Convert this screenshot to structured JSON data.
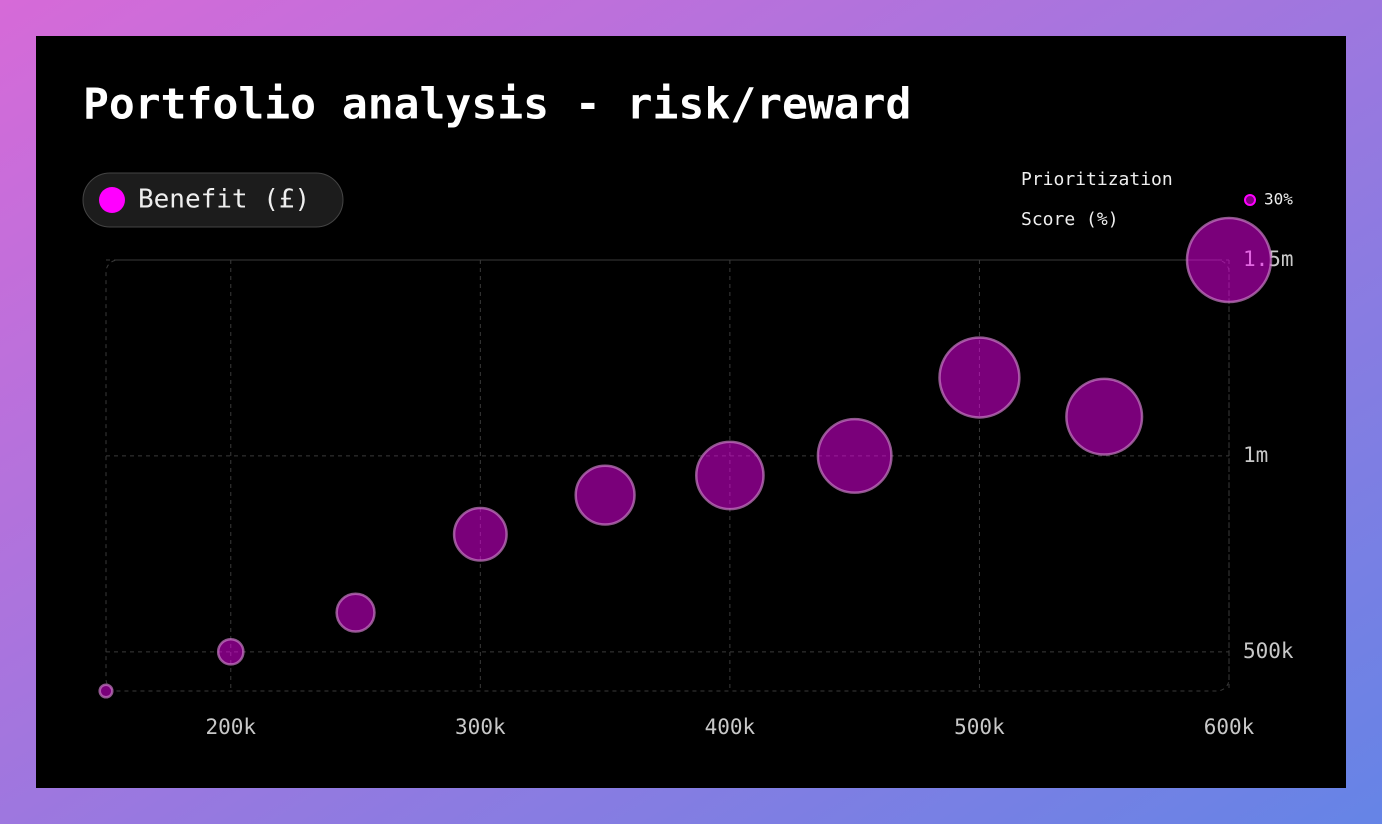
{
  "chart_data": {
    "type": "bubble",
    "title": "Portfolio analysis - risk/reward",
    "x": [
      150000,
      200000,
      250000,
      300000,
      350000,
      400000,
      450000,
      500000,
      550000,
      600000
    ],
    "series": [
      {
        "name": "Benefit (£)",
        "color": "#ff00ff",
        "values": [
          400000,
          500000,
          600000,
          800000,
          900000,
          950000,
          1000000,
          1200000,
          1100000,
          1500000
        ],
        "sizes": [
          6,
          12,
          18,
          25,
          28,
          32,
          35,
          38,
          36,
          40
        ]
      }
    ],
    "size_title": [
      "Prioritization",
      "Score (%)"
    ],
    "size_legend": {
      "value": 30,
      "label": "30%"
    },
    "xlim": [
      150000,
      600000
    ],
    "xticks": [
      {
        "value": 200000,
        "label": "200k"
      },
      {
        "value": 300000,
        "label": "300k"
      },
      {
        "value": 400000,
        "label": "400k"
      },
      {
        "value": 500000,
        "label": "500k"
      },
      {
        "value": 600000,
        "label": "600k"
      }
    ],
    "ylim": [
      400000,
      1500000
    ],
    "yticks": [
      {
        "value": 500000,
        "label": "500k"
      },
      {
        "value": 1000000,
        "label": "1m"
      },
      {
        "value": 1500000,
        "label": "1.5m"
      }
    ],
    "grid": true
  }
}
